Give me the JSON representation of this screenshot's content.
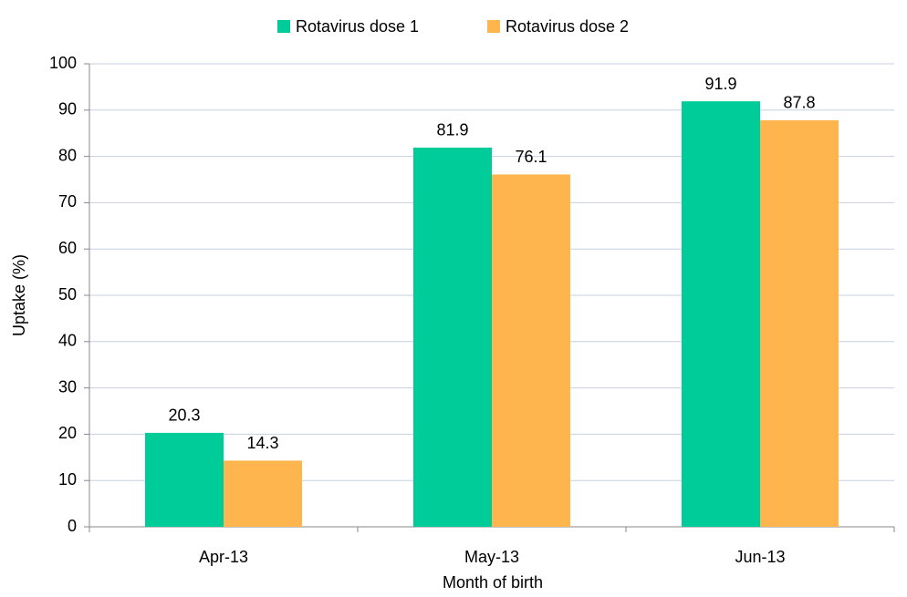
{
  "chart_data": {
    "type": "bar",
    "x_label": "Month of birth",
    "y_label": "Uptake (%)",
    "categories": [
      "Apr-13",
      "May-13",
      "Jun-13"
    ],
    "series": [
      {
        "name": "Rotavirus dose 1",
        "color": "#00cc99",
        "values": [
          20.3,
          81.9,
          91.9
        ]
      },
      {
        "name": "Rotavirus dose 2",
        "color": "#ffb54d",
        "values": [
          14.3,
          76.1,
          87.8
        ]
      }
    ],
    "ylim": [
      0,
      100
    ],
    "yticks": [
      0,
      10,
      20,
      30,
      40,
      50,
      60,
      70,
      80,
      90,
      100
    ],
    "grid": true,
    "legend": "top"
  }
}
